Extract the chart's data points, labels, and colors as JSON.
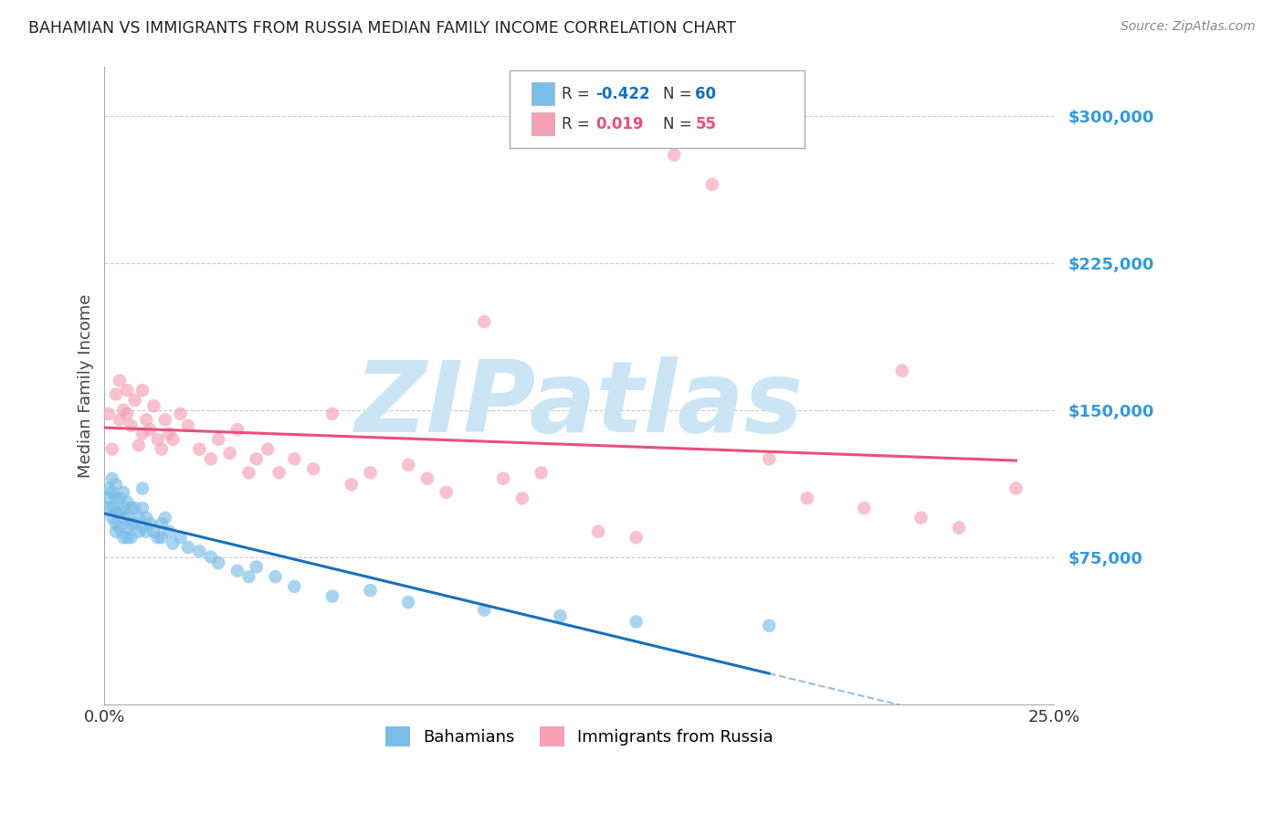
{
  "title": "BAHAMIAN VS IMMIGRANTS FROM RUSSIA MEDIAN FAMILY INCOME CORRELATION CHART",
  "source": "Source: ZipAtlas.com",
  "ylabel": "Median Family Income",
  "xlim": [
    0.0,
    0.25
  ],
  "ylim": [
    0,
    325000
  ],
  "yticks": [
    0,
    75000,
    150000,
    225000,
    300000
  ],
  "ytick_labels": [
    "",
    "$75,000",
    "$150,000",
    "$225,000",
    "$300,000"
  ],
  "xticks": [
    0.0,
    0.05,
    0.1,
    0.15,
    0.2,
    0.25
  ],
  "xtick_labels": [
    "0.0%",
    "",
    "",
    "",
    "",
    "25.0%"
  ],
  "bahamian_R": -0.422,
  "bahamian_N": 60,
  "russia_R": 0.019,
  "russia_N": 55,
  "blue_color": "#7bbde8",
  "pink_color": "#f5a0b5",
  "blue_line_color": "#1a6fba",
  "pink_line_color": "#e8507a",
  "title_color": "#222222",
  "source_color": "#888888",
  "axis_label_color": "#444444",
  "ytick_color": "#3399dd",
  "xtick_color": "#333333",
  "grid_color": "#cccccc",
  "watermark_color": "#cce5f5",
  "watermark_text": "ZIPatlas",
  "bahamian_x": [
    0.001,
    0.001,
    0.001,
    0.002,
    0.002,
    0.002,
    0.002,
    0.003,
    0.003,
    0.003,
    0.003,
    0.003,
    0.004,
    0.004,
    0.004,
    0.005,
    0.005,
    0.005,
    0.005,
    0.006,
    0.006,
    0.006,
    0.006,
    0.007,
    0.007,
    0.007,
    0.008,
    0.008,
    0.009,
    0.009,
    0.01,
    0.01,
    0.01,
    0.011,
    0.011,
    0.012,
    0.013,
    0.014,
    0.015,
    0.015,
    0.016,
    0.017,
    0.018,
    0.02,
    0.022,
    0.025,
    0.028,
    0.03,
    0.035,
    0.038,
    0.04,
    0.045,
    0.05,
    0.06,
    0.07,
    0.08,
    0.1,
    0.12,
    0.14,
    0.175
  ],
  "bahamian_y": [
    110000,
    105000,
    100000,
    115000,
    108000,
    100000,
    95000,
    112000,
    105000,
    98000,
    92000,
    88000,
    105000,
    98000,
    90000,
    108000,
    100000,
    95000,
    85000,
    103000,
    96000,
    90000,
    85000,
    100000,
    92000,
    85000,
    100000,
    92000,
    95000,
    88000,
    110000,
    100000,
    90000,
    95000,
    88000,
    92000,
    88000,
    85000,
    92000,
    85000,
    95000,
    88000,
    82000,
    85000,
    80000,
    78000,
    75000,
    72000,
    68000,
    65000,
    70000,
    65000,
    60000,
    55000,
    58000,
    52000,
    48000,
    45000,
    42000,
    40000
  ],
  "russia_x": [
    0.001,
    0.002,
    0.003,
    0.004,
    0.004,
    0.005,
    0.006,
    0.006,
    0.007,
    0.008,
    0.009,
    0.01,
    0.01,
    0.011,
    0.012,
    0.013,
    0.014,
    0.015,
    0.016,
    0.017,
    0.018,
    0.02,
    0.022,
    0.025,
    0.028,
    0.03,
    0.033,
    0.035,
    0.038,
    0.04,
    0.043,
    0.046,
    0.05,
    0.055,
    0.06,
    0.065,
    0.07,
    0.08,
    0.085,
    0.09,
    0.1,
    0.105,
    0.11,
    0.115,
    0.13,
    0.14,
    0.15,
    0.16,
    0.175,
    0.185,
    0.2,
    0.21,
    0.215,
    0.225,
    0.24
  ],
  "russia_y": [
    148000,
    130000,
    158000,
    145000,
    165000,
    150000,
    160000,
    148000,
    142000,
    155000,
    132000,
    138000,
    160000,
    145000,
    140000,
    152000,
    135000,
    130000,
    145000,
    138000,
    135000,
    148000,
    142000,
    130000,
    125000,
    135000,
    128000,
    140000,
    118000,
    125000,
    130000,
    118000,
    125000,
    120000,
    148000,
    112000,
    118000,
    122000,
    115000,
    108000,
    195000,
    115000,
    105000,
    118000,
    88000,
    85000,
    280000,
    265000,
    125000,
    105000,
    100000,
    170000,
    95000,
    90000,
    110000
  ]
}
